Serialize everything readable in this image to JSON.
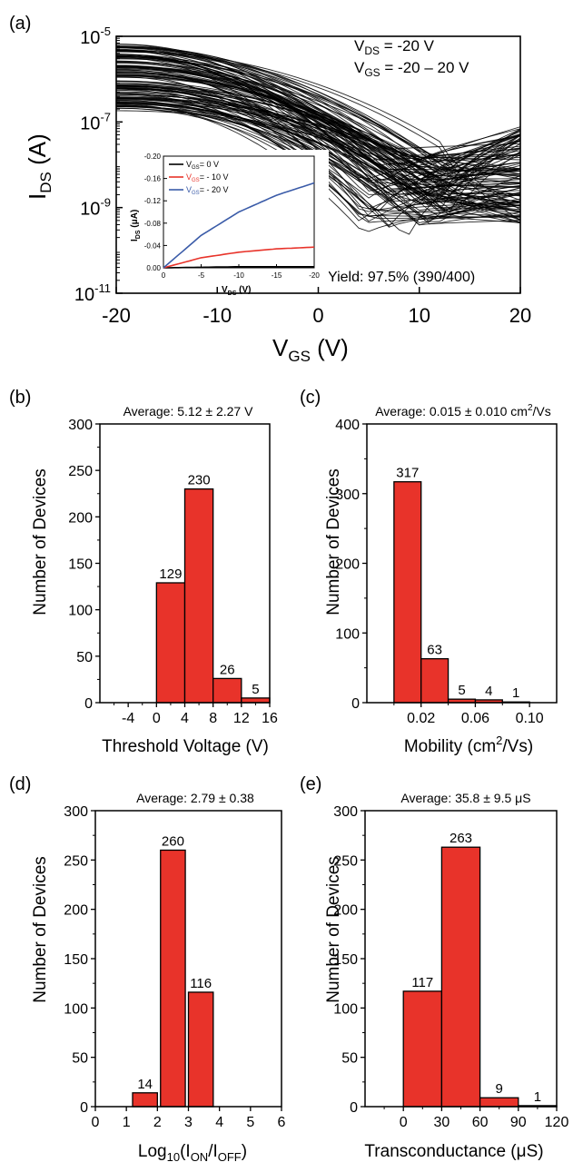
{
  "chart_data": [
    {
      "type": "line",
      "panel_label": "(a)",
      "xlabel_main": "V",
      "xlabel_sub": "GS",
      "xlabel_unit": " (V)",
      "ylabel_main": "I",
      "ylabel_sub": "DS",
      "ylabel_unit": " (A)",
      "x_scale": "linear",
      "y_scale": "log",
      "xlim": [
        -20,
        20
      ],
      "ylim": [
        1e-11,
        1e-05
      ],
      "x_ticks": [
        "-20",
        "-10",
        "0",
        "10",
        "20"
      ],
      "x_tick_values": [
        -20,
        -10,
        0,
        10,
        20
      ],
      "y_ticks": [
        {
          "base": "10",
          "exp": "-5",
          "value": 1e-05
        },
        {
          "base": "10",
          "exp": "-7",
          "value": 1e-07
        },
        {
          "base": "10",
          "exp": "-9",
          "value": 1e-09
        },
        {
          "base": "10",
          "exp": "-11",
          "value": 1e-11
        }
      ],
      "annotations": {
        "vds": {
          "main": "V",
          "sub": "DS",
          "rest": " = -20 V"
        },
        "vgs": {
          "main": "V",
          "sub": "GS",
          "rest": " = -20 – 20 V"
        },
        "yield": "Yield: 97.5% (390/400)"
      },
      "series_description_count": 390,
      "series_envelope": [
        {
          "x": -20,
          "y_low": 1.8e-07,
          "y_high": 8e-06
        },
        {
          "x": -10,
          "y_low": 8e-08,
          "y_high": 3.5e-06
        },
        {
          "x": 0,
          "y_low": 3e-09,
          "y_high": 8e-07
        },
        {
          "x": 10,
          "y_low": 2e-10,
          "y_high": 3e-08
        },
        {
          "x": 20,
          "y_low": 3e-10,
          "y_high": 1e-07
        }
      ],
      "inset": {
        "type": "line",
        "xlabel_main": "V",
        "xlabel_sub": "DS",
        "xlabel_unit": " (V)",
        "ylabel_main": "I",
        "ylabel_sub": "DS",
        "ylabel_unit": " (μA)",
        "xlim": [
          0,
          -20
        ],
        "ylim": [
          0,
          -0.2
        ],
        "x_ticks": [
          "0",
          "-5",
          "-10",
          "-15",
          "-20"
        ],
        "x_tick_values": [
          0,
          -5,
          -10,
          -15,
          -20
        ],
        "y_ticks": [
          "0.00",
          "-0.04",
          "-0.08",
          "-0.12",
          "-0.16",
          "-0.20"
        ],
        "y_tick_values": [
          0,
          -0.04,
          -0.08,
          -0.12,
          -0.16,
          -0.2
        ],
        "series": [
          {
            "name": "0 V",
            "legend_main": "V",
            "legend_sub": "GS",
            "legend_rest": "=   0 V",
            "color": "#000000",
            "x": [
              0,
              -5,
              -10,
              -15,
              -20
            ],
            "y": [
              0,
              -0.001,
              -0.002,
              -0.002,
              -0.002
            ]
          },
          {
            "name": "- 10 V",
            "legend_main": "V",
            "legend_sub": "GS",
            "legend_rest": "= - 10 V",
            "color": "#e8332a",
            "x": [
              0,
              -5,
              -10,
              -15,
              -20
            ],
            "y": [
              0,
              -0.018,
              -0.028,
              -0.034,
              -0.037
            ]
          },
          {
            "name": "- 20 V",
            "legend_main": "V",
            "legend_sub": "GS",
            "legend_rest": "= - 20 V",
            "color": "#3a5ba8",
            "x": [
              0,
              -5,
              -10,
              -15,
              -20
            ],
            "y": [
              0,
              -0.058,
              -0.1,
              -0.13,
              -0.152
            ]
          }
        ]
      }
    },
    {
      "type": "bar",
      "panel_label": "(b)",
      "title": "Average: 5.12 ± 2.27 V",
      "xlabel": "Threshold Voltage (V)",
      "ylabel": "Number of Devices",
      "xlim": [
        -8,
        16
      ],
      "ylim": [
        0,
        300
      ],
      "x_ticks": [
        "-4",
        "0",
        "4",
        "8",
        "12",
        "16"
      ],
      "x_tick_values": [
        -4,
        0,
        4,
        8,
        12,
        16
      ],
      "y_ticks": [
        "0",
        "50",
        "100",
        "150",
        "200",
        "250",
        "300"
      ],
      "y_tick_values": [
        0,
        50,
        100,
        150,
        200,
        250,
        300
      ],
      "bins": [
        [
          0,
          4
        ],
        [
          4,
          8
        ],
        [
          8,
          12
        ],
        [
          12,
          16
        ]
      ],
      "values": [
        129,
        230,
        26,
        5
      ],
      "labels": [
        "129",
        "230",
        "26",
        "5"
      ],
      "color": "#e8332a"
    },
    {
      "type": "bar",
      "panel_label": "(c)",
      "title_main": "Average: 0.015 ± 0.010 cm",
      "title_sup": "2",
      "title_rest": "/Vs",
      "xlabel_main": "Mobility (cm",
      "xlabel_sup": "2",
      "xlabel_rest": "/Vs)",
      "ylabel": "Number of Devices",
      "xlim": [
        -0.02,
        0.12
      ],
      "ylim": [
        0,
        400
      ],
      "x_ticks": [
        "0.02",
        "0.06",
        "0.10"
      ],
      "x_tick_values": [
        0.02,
        0.06,
        0.1
      ],
      "y_ticks": [
        "0",
        "100",
        "200",
        "300",
        "400"
      ],
      "y_tick_values": [
        0,
        100,
        200,
        300,
        400
      ],
      "bins": [
        [
          0,
          0.02
        ],
        [
          0.02,
          0.04
        ],
        [
          0.04,
          0.06
        ],
        [
          0.06,
          0.08
        ],
        [
          0.08,
          0.1
        ]
      ],
      "values": [
        317,
        63,
        5,
        4,
        1
      ],
      "labels": [
        "317",
        "63",
        "5",
        "4",
        "1"
      ],
      "color": "#e8332a"
    },
    {
      "type": "bar",
      "panel_label": "(d)",
      "title": "Average: 2.79 ± 0.38",
      "xlabel_main": "Log",
      "xlabel_sub": "10",
      "xlabel_p1": "(I",
      "xlabel_sub2": "ON",
      "xlabel_p2": "/I",
      "xlabel_sub3": "OFF",
      "xlabel_p3": ")",
      "ylabel": "Number of Devices",
      "xlim": [
        0,
        6
      ],
      "ylim": [
        0,
        300
      ],
      "x_ticks": [
        "0",
        "1",
        "2",
        "3",
        "4",
        "5",
        "6"
      ],
      "x_tick_values": [
        0,
        1,
        2,
        3,
        4,
        5,
        6
      ],
      "y_ticks": [
        "0",
        "50",
        "100",
        "150",
        "200",
        "250",
        "300"
      ],
      "y_tick_values": [
        0,
        50,
        100,
        150,
        200,
        250,
        300
      ],
      "bins": [
        [
          1.2,
          2
        ],
        [
          2.1,
          2.9
        ],
        [
          3,
          3.8
        ]
      ],
      "values": [
        14,
        260,
        116
      ],
      "labels": [
        "14",
        "260",
        "116"
      ],
      "color": "#e8332a"
    },
    {
      "type": "bar",
      "panel_label": "(e)",
      "title": "Average: 35.8 ± 9.5 μS",
      "xlabel": "Transconductance (μS)",
      "ylabel": "Number of Devices",
      "xlim": [
        -30,
        120
      ],
      "ylim": [
        0,
        300
      ],
      "x_ticks": [
        "0",
        "30",
        "60",
        "90",
        "120"
      ],
      "x_tick_values": [
        0,
        30,
        60,
        90,
        120
      ],
      "y_ticks": [
        "0",
        "50",
        "100",
        "150",
        "200",
        "250",
        "300"
      ],
      "y_tick_values": [
        0,
        50,
        100,
        150,
        200,
        250,
        300
      ],
      "bins": [
        [
          0,
          30
        ],
        [
          30,
          60
        ],
        [
          60,
          90
        ],
        [
          90,
          120
        ]
      ],
      "values": [
        117,
        263,
        9,
        1
      ],
      "labels": [
        "117",
        "263",
        "9",
        "1"
      ],
      "color": "#e8332a"
    }
  ]
}
